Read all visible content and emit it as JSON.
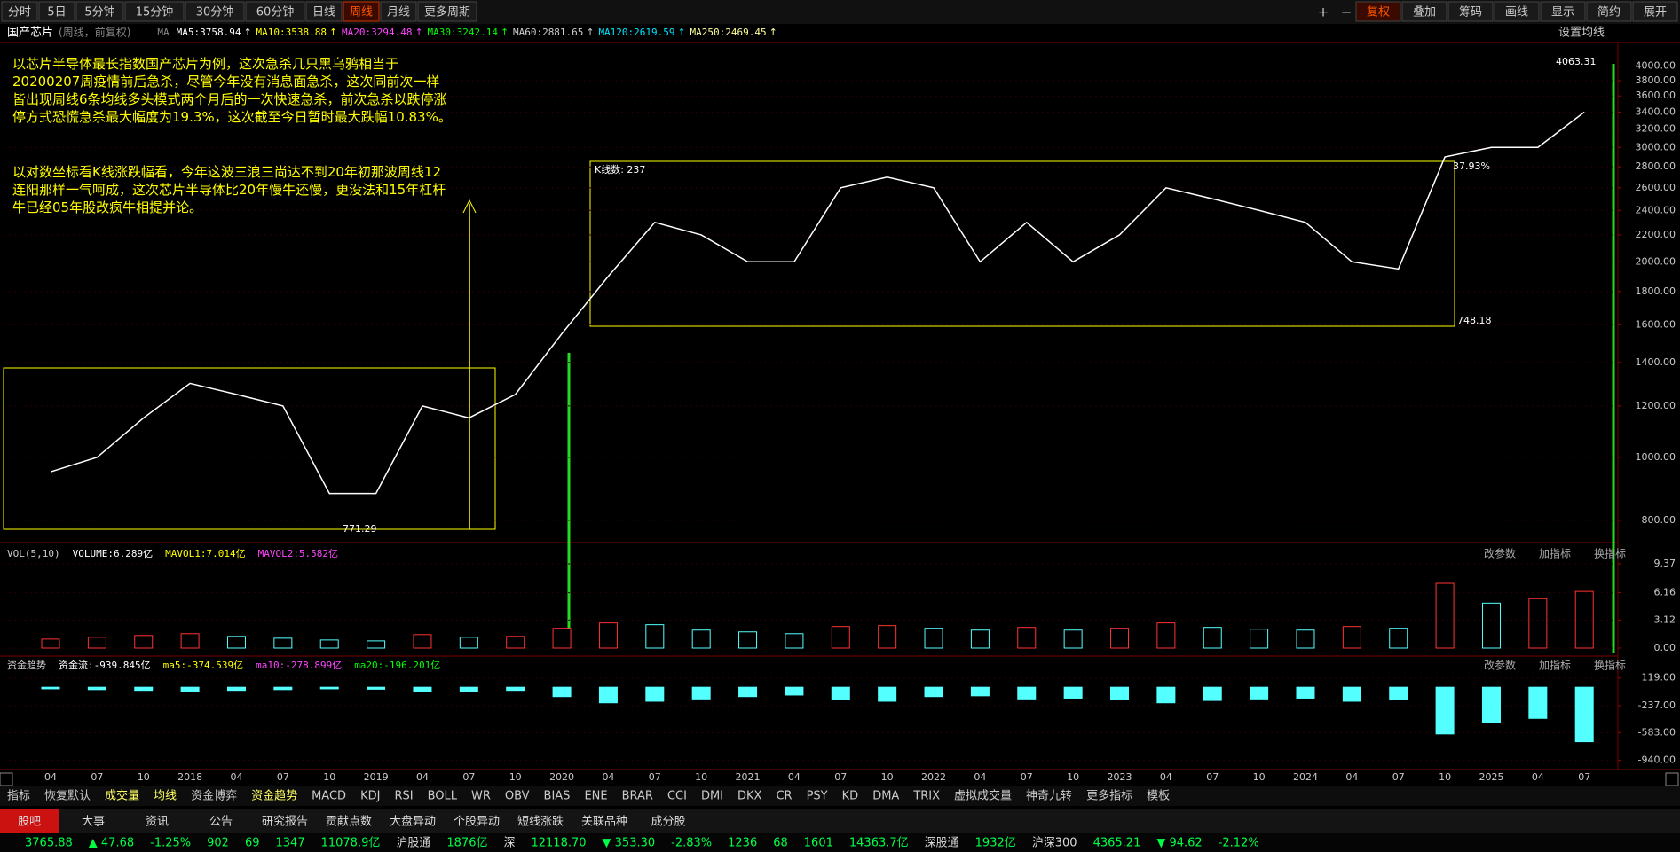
{
  "toolbar": {
    "tabs": [
      "分时",
      "5日",
      "5分钟",
      "15分钟",
      "30分钟",
      "60分钟",
      "日线",
      "周线",
      "月线",
      "更多周期"
    ],
    "right": [
      "复权",
      "叠加",
      "筹码",
      "画线",
      "显示",
      "简约",
      "展开"
    ]
  },
  "header": {
    "title": "国产芯片",
    "subtitle": "(周线，前复权)",
    "ma_prefix": "MA",
    "ma": [
      {
        "text": "MA5:3758.94",
        "color": "#ffffff"
      },
      {
        "text": "MA10:3538.88",
        "color": "#ffff00"
      },
      {
        "text": "MA20:3294.48",
        "color": "#ff44ff"
      },
      {
        "text": "MA30:3242.14",
        "color": "#00ff00"
      },
      {
        "text": "MA60:2881.65",
        "color": "#cccccc"
      },
      {
        "text": "MA120:2619.59",
        "color": "#00e5ff"
      },
      {
        "text": "MA250:2469.45",
        "color": "#ffff99"
      }
    ],
    "settings": "设置均线"
  },
  "notes": [
    "以芯片半导体最长指数国产芯片为例，这次急杀几只黑乌鸦相当于20200207周疫情前后急杀，尽管今年没有消息面急杀，这次同前次一样皆出现周线6条均线多头模式两个月后的一次快速急杀，前次急杀以跌停涨停方式恐慌急杀最大幅度为19.3%，这次截至今日暂时最大跌幅10.83%。",
    "以对数坐标看K线涨跌幅看，今年这波三浪三尚达不到20年初那波周线12连阳那样一气呵成，这次芯片半导体比20年慢牛还慢，更没法和15年杠杆牛已经05年股改疯牛相提并论。"
  ],
  "chart_data": [
    {
      "type": "line",
      "categories": [
        "04",
        "07",
        "10",
        "2018",
        "04",
        "07",
        "10",
        "2019",
        "04",
        "07",
        "10",
        "2020",
        "04",
        "07",
        "10",
        "2021",
        "04",
        "07",
        "10",
        "2022",
        "04",
        "07",
        "10",
        "2023",
        "04",
        "07",
        "10",
        "2024",
        "04",
        "07",
        "10",
        "2025",
        "04",
        "07"
      ],
      "series": [
        {
          "name": "国产芯片",
          "color": "#ffffff",
          "values": [
            950,
            1000,
            1150,
            1300,
            1250,
            1200,
            880,
            880,
            1200,
            1150,
            1250,
            1550,
            1900,
            2300,
            2200,
            2000,
            2000,
            2600,
            2700,
            2600,
            2000,
            2300,
            2000,
            2200,
            2600,
            2500,
            2400,
            2300,
            2000,
            1950,
            2900,
            3000,
            3000,
            3400
          ]
        }
      ],
      "ylim": [
        744,
        4350
      ],
      "log_scale": true,
      "yticks": [
        {
          "value": 4000,
          "label": "4000.00"
        },
        {
          "value": 3800,
          "label": "3800.00"
        },
        {
          "value": 3600,
          "label": "3600.00"
        },
        {
          "value": 3400,
          "label": "3400.00"
        },
        {
          "value": 3200,
          "label": "3200.00"
        },
        {
          "value": 3000,
          "label": "3000.00"
        },
        {
          "value": 2800,
          "label": "2800.00"
        },
        {
          "value": 2600,
          "label": "2600.00"
        },
        {
          "value": 2400,
          "label": "2400.00"
        },
        {
          "value": 2200,
          "label": "2200.00"
        },
        {
          "value": 2000,
          "label": "2000.00"
        },
        {
          "value": 1800,
          "label": "1800.00"
        },
        {
          "value": 1600,
          "label": "1600.00"
        },
        {
          "value": 1400,
          "label": "1400.00"
        },
        {
          "value": 1200,
          "label": "1200.00"
        },
        {
          "value": 1000,
          "label": "1000.00"
        },
        {
          "value": 800,
          "label": "800.00"
        }
      ],
      "annotations": [
        "4063.31",
        "K线数: 237",
        "37.93%",
        "748.18",
        "771.29"
      ]
    },
    {
      "type": "bar",
      "header": [
        "VOL(5,10)",
        "VOLUME:6.289亿",
        "MAVOL1:7.014亿",
        "MAVOL2:5.582亿"
      ],
      "buttons": [
        "改参数",
        "加指标",
        "换指标"
      ],
      "values": [
        1.0,
        1.2,
        1.4,
        1.6,
        1.3,
        1.1,
        0.9,
        0.8,
        1.5,
        1.2,
        1.3,
        2.2,
        2.8,
        2.6,
        2.0,
        1.8,
        1.6,
        2.4,
        2.5,
        2.2,
        2.0,
        2.3,
        2.0,
        2.2,
        2.8,
        2.3,
        2.1,
        2.0,
        2.4,
        2.2,
        7.2,
        5.0,
        5.5,
        6.3
      ],
      "up_color": "#ff3232",
      "down_color": "#54ffff",
      "ylim": [
        0,
        9.57
      ],
      "yticks": [
        {
          "value": 0,
          "label": "0.00"
        },
        3.12,
        6.16,
        9.37
      ]
    },
    {
      "type": "bar",
      "header": [
        "资金趋势",
        "资金流:-939.845亿",
        "ma5:-374.539亿",
        "ma10:-278.899亿",
        "ma20:-196.201亿"
      ],
      "buttons": [
        "改参数",
        "加指标",
        "换指标"
      ],
      "values": [
        -20,
        -30,
        -40,
        -50,
        -40,
        -30,
        -20,
        -25,
        -60,
        -50,
        -40,
        -120,
        -200,
        -180,
        -150,
        -120,
        -100,
        -160,
        -180,
        -120,
        -110,
        -150,
        -140,
        -160,
        -200,
        -170,
        -150,
        -140,
        -180,
        -160,
        -600,
        -450,
        -400,
        -700
      ],
      "color": "#54ffff",
      "ylim": [
        -1035,
        173
      ],
      "yticks": [
        {
          "value": 119,
          "label": "119.00"
        },
        {
          "value": -237,
          "label": "-237.00"
        },
        {
          "value": -583,
          "label": "-583.00"
        },
        {
          "value": -940,
          "label": "-940.00"
        }
      ]
    }
  ],
  "indicators": [
    "指标",
    "恢复默认",
    "成交量",
    "均线",
    "资金博弈",
    "资金趋势",
    "MACD",
    "KDJ",
    "RSI",
    "BOLL",
    "WR",
    "OBV",
    "BIAS",
    "ENE",
    "BRAR",
    "CCI",
    "DMI",
    "DKX",
    "CR",
    "PSY",
    "KD",
    "DMA",
    "TRIX",
    "虚拟成交量",
    "神奇九转",
    "更多指标",
    "模板"
  ],
  "news_tabs": [
    "股吧",
    "大事",
    "资讯",
    "公告",
    "研究报告",
    "贡献点数",
    "大盘异动",
    "个股异动",
    "短线涨跌",
    "关联品种",
    "成分股"
  ],
  "ticker": [
    "3765.88",
    "▲ 47.68",
    "-1.25%",
    "902",
    "69",
    "1347",
    "11078.9亿",
    "沪股通",
    "1876亿",
    "深",
    "12118.70",
    "▼ 353.30",
    "-2.83%",
    "1236",
    "68",
    "1601",
    "14363.7亿",
    "深股通",
    "1932亿",
    "沪深300",
    "4365.21",
    "▼ 94.62",
    "-2.12%"
  ]
}
